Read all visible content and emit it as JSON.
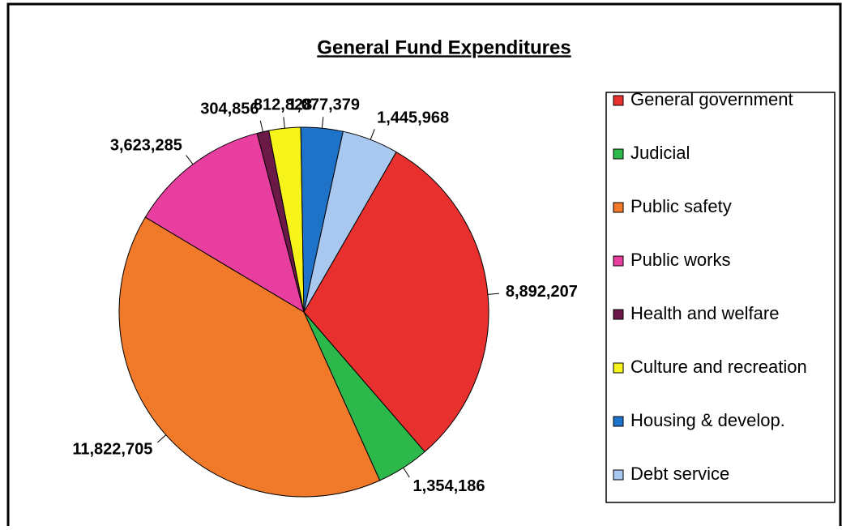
{
  "chart_data": {
    "type": "pie",
    "title": "General Fund Expenditures",
    "categories": [
      "General government",
      "Judicial",
      "Public safety",
      "Public works",
      "Health and welfare",
      "Culture and recreation",
      "Housing & develop.",
      "Debt service"
    ],
    "values": [
      8892207,
      1354186,
      11822705,
      3623285,
      304856,
      812828,
      1077379,
      1445968
    ],
    "value_labels": [
      "8,892,207",
      "1,354,186",
      "11,822,705",
      "3,623,285",
      "304,856",
      "812,828",
      "1,077,379",
      "1,445,968"
    ],
    "colors": [
      "#e8312f",
      "#2db84b",
      "#f07a2a",
      "#e83ea0",
      "#6b1a48",
      "#f7f41b",
      "#1e73c8",
      "#a8c8f0"
    ]
  }
}
